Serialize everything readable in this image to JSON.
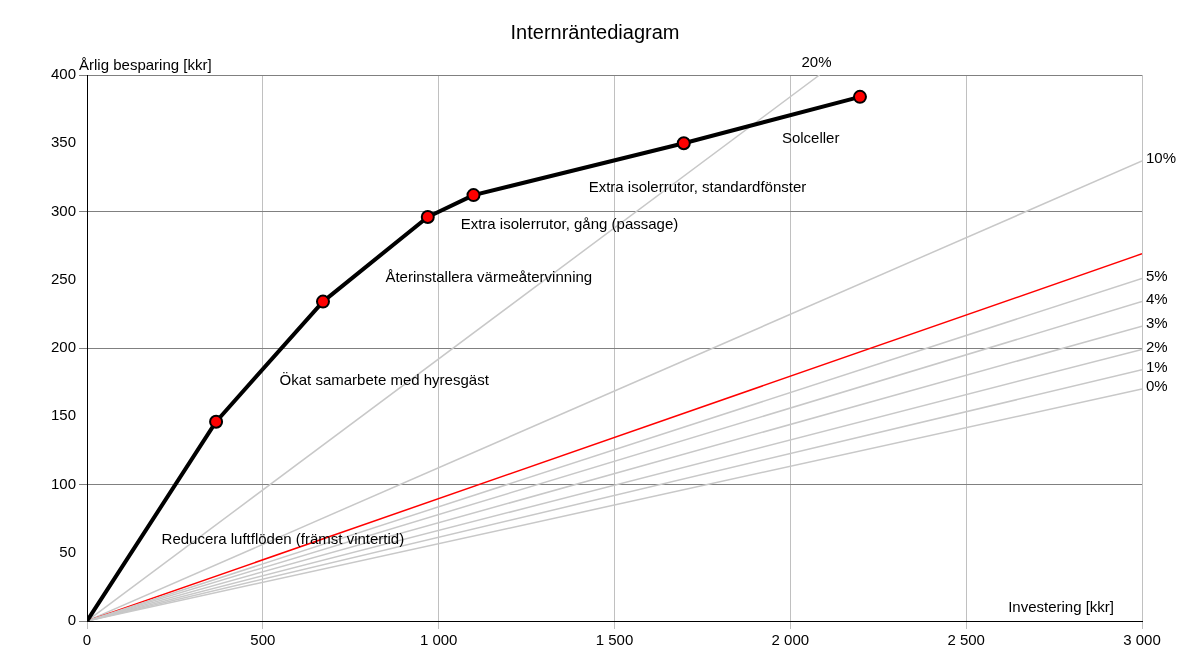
{
  "chart_data": {
    "type": "line",
    "title": "Internräntediagram",
    "xlabel": "Investering [kkr]",
    "ylabel": "Årlig besparing [kkr]",
    "xlim": [
      0,
      3000
    ],
    "ylim": [
      0,
      400
    ],
    "xticks": [
      0,
      500,
      {
        "value": 1000,
        "label": "1 000"
      },
      {
        "value": 1500,
        "label": "1 500"
      },
      {
        "value": 2000,
        "label": "2 000"
      },
      {
        "value": 2500,
        "label": "2 500"
      },
      {
        "value": 3000,
        "label": "3 000"
      }
    ],
    "yticks": [
      0,
      50,
      100,
      150,
      200,
      250,
      300,
      350,
      400
    ],
    "grid": true,
    "legend": false,
    "series": [
      {
        "name": "0%",
        "color": "#c8c8c8",
        "x": [
          0,
          3000
        ],
        "values": [
          0,
          170
        ]
      },
      {
        "name": "1%",
        "color": "#c8c8c8",
        "x": [
          0,
          3000
        ],
        "values": [
          0,
          184
        ]
      },
      {
        "name": "2%",
        "color": "#c8c8c8",
        "x": [
          0,
          3000
        ],
        "values": [
          0,
          199
        ]
      },
      {
        "name": "3%",
        "color": "#c8c8c8",
        "x": [
          0,
          3000
        ],
        "values": [
          0,
          216
        ]
      },
      {
        "name": "4%",
        "color": "#c8c8c8",
        "x": [
          0,
          3000
        ],
        "values": [
          0,
          234
        ]
      },
      {
        "name": "5%",
        "color": "#c8c8c8",
        "x": [
          0,
          3000
        ],
        "values": [
          0,
          251
        ]
      },
      {
        "color": "#ff0000",
        "x": [
          0,
          3000
        ],
        "values": [
          0,
          269
        ]
      },
      {
        "name": "10%",
        "color": "#c8c8c8",
        "x": [
          0,
          3000
        ],
        "values": [
          0,
          337
        ]
      },
      {
        "name": "20%",
        "color": "#c8c8c8",
        "x": [
          0,
          2083
        ],
        "values": [
          0,
          400
        ]
      },
      {
        "color": "#000000",
        "marker": "circle",
        "x": [
          0,
          367,
          671,
          969,
          1099,
          1697,
          2198
        ],
        "values": [
          0,
          146,
          234,
          296,
          312,
          350,
          384
        ]
      }
    ],
    "annotations": [
      "Reducera luftflöden (främst vintertid)",
      "Ökat samarbete med hyresgäst",
      "Återinstallera värmeåtervinning",
      "Extra isolerrutor, gång (passage)",
      "Extra isolerrutor, standardfönster",
      "Solceller"
    ]
  }
}
